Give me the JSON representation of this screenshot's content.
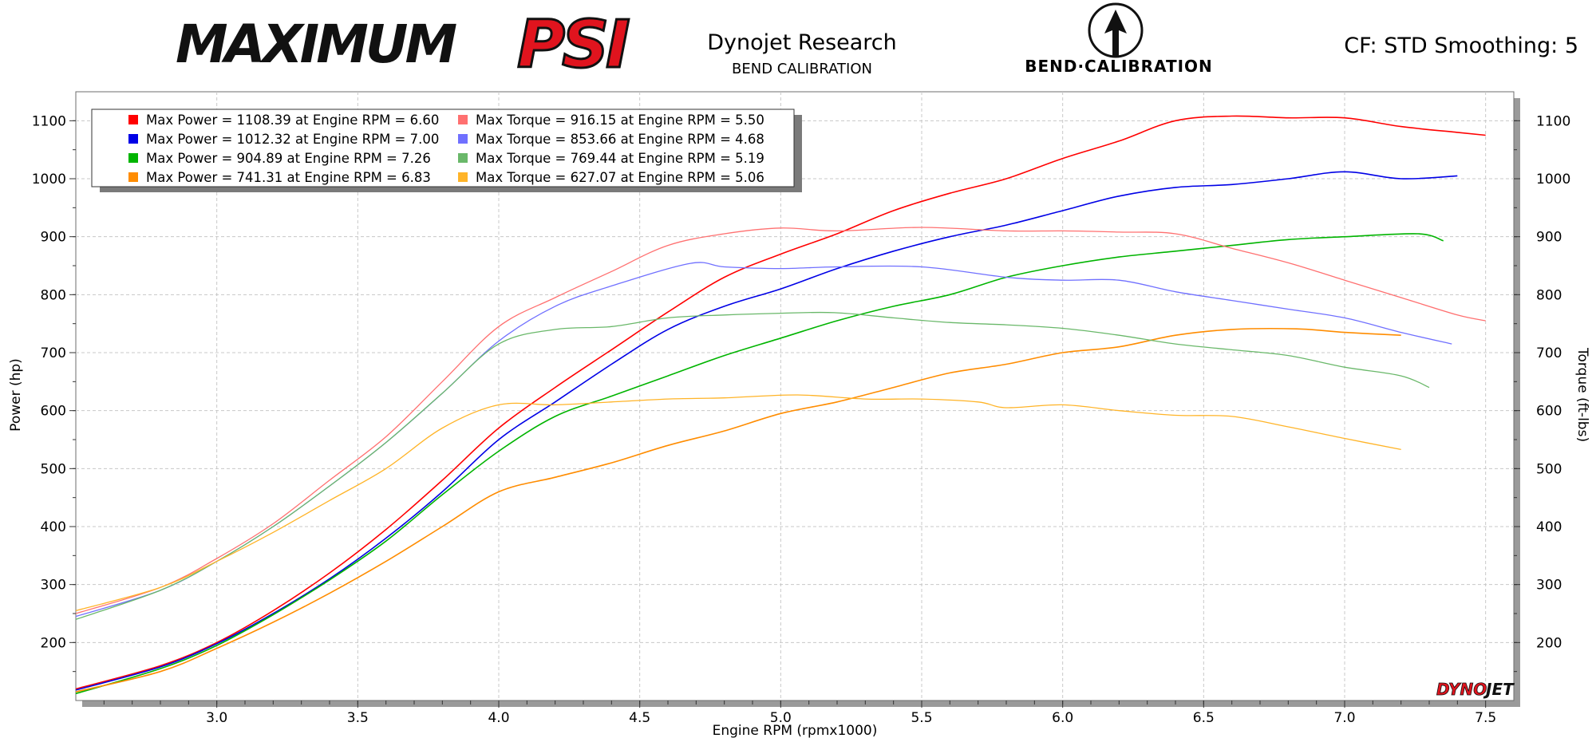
{
  "header": {
    "logo_left_part1": "MAXIMUM",
    "logo_left_part2": "PSI",
    "title": "Dynojet Research",
    "subtitle": "BEND CALIBRATION",
    "logo_right": "BEND·CALIBRATION",
    "settings": "CF: STD Smoothing: 5",
    "watermark_part1": "DYNO",
    "watermark_part2": "JET"
  },
  "colors": {
    "power": [
      "#ff0000",
      "#0000e6",
      "#00b400",
      "#ff8c00"
    ],
    "torque": [
      "#ff7070",
      "#7070ff",
      "#6ab86a",
      "#ffb428"
    ],
    "grid": "#c8c8c8"
  },
  "chart_data": {
    "type": "line",
    "xlabel": "Engine RPM (rpmx1000)",
    "ylabel_left": "Power (hp)",
    "ylabel_right": "Torque (ft-lbs)",
    "xlim": [
      2.5,
      7.6
    ],
    "ylim": [
      100,
      1150
    ],
    "x_ticks": [
      "3.0",
      "3.5",
      "4.0",
      "4.5",
      "5.0",
      "5.5",
      "6.0",
      "6.5",
      "7.0",
      "7.5"
    ],
    "y_ticks": [
      "200",
      "300",
      "400",
      "500",
      "600",
      "700",
      "800",
      "900",
      "1000",
      "1100"
    ],
    "grid": true,
    "legend_position": "top-left",
    "legend": [
      "Max Power = 1108.39 at Engine RPM = 6.60",
      "Max Power = 1012.32 at Engine RPM = 7.00",
      "Max Power = 904.89 at Engine RPM = 7.26",
      "Max Power = 741.31 at Engine RPM = 6.83",
      "Max Torque = 916.15 at Engine RPM = 5.50",
      "Max Torque = 853.66 at Engine RPM = 4.68",
      "Max Torque = 769.44 at Engine RPM = 5.19",
      "Max Torque = 627.07 at Engine RPM = 5.06"
    ],
    "series": [
      {
        "kind": "power",
        "points": [
          [
            2.5,
            120
          ],
          [
            2.8,
            160
          ],
          [
            3.0,
            200
          ],
          [
            3.2,
            255
          ],
          [
            3.4,
            320
          ],
          [
            3.6,
            395
          ],
          [
            3.8,
            480
          ],
          [
            4.0,
            570
          ],
          [
            4.2,
            640
          ],
          [
            4.4,
            705
          ],
          [
            4.6,
            770
          ],
          [
            4.8,
            830
          ],
          [
            5.0,
            870
          ],
          [
            5.2,
            905
          ],
          [
            5.4,
            945
          ],
          [
            5.6,
            975
          ],
          [
            5.8,
            1000
          ],
          [
            6.0,
            1035
          ],
          [
            6.2,
            1065
          ],
          [
            6.4,
            1100
          ],
          [
            6.6,
            1108
          ],
          [
            6.8,
            1105
          ],
          [
            7.0,
            1105
          ],
          [
            7.2,
            1090
          ],
          [
            7.4,
            1080
          ],
          [
            7.5,
            1075
          ]
        ]
      },
      {
        "kind": "power",
        "points": [
          [
            2.5,
            118
          ],
          [
            2.8,
            158
          ],
          [
            3.0,
            198
          ],
          [
            3.2,
            250
          ],
          [
            3.4,
            310
          ],
          [
            3.6,
            380
          ],
          [
            3.8,
            460
          ],
          [
            4.0,
            550
          ],
          [
            4.2,
            615
          ],
          [
            4.4,
            680
          ],
          [
            4.6,
            740
          ],
          [
            4.8,
            780
          ],
          [
            5.0,
            810
          ],
          [
            5.2,
            845
          ],
          [
            5.4,
            875
          ],
          [
            5.6,
            900
          ],
          [
            5.8,
            920
          ],
          [
            6.0,
            945
          ],
          [
            6.2,
            970
          ],
          [
            6.4,
            985
          ],
          [
            6.6,
            990
          ],
          [
            6.8,
            1000
          ],
          [
            7.0,
            1012
          ],
          [
            7.2,
            1000
          ],
          [
            7.4,
            1005
          ]
        ]
      },
      {
        "kind": "power",
        "points": [
          [
            2.5,
            112
          ],
          [
            2.8,
            155
          ],
          [
            3.0,
            195
          ],
          [
            3.2,
            248
          ],
          [
            3.4,
            308
          ],
          [
            3.6,
            375
          ],
          [
            3.8,
            455
          ],
          [
            4.0,
            530
          ],
          [
            4.2,
            590
          ],
          [
            4.4,
            625
          ],
          [
            4.6,
            660
          ],
          [
            4.8,
            695
          ],
          [
            5.0,
            725
          ],
          [
            5.2,
            755
          ],
          [
            5.4,
            780
          ],
          [
            5.6,
            800
          ],
          [
            5.8,
            830
          ],
          [
            6.0,
            850
          ],
          [
            6.2,
            865
          ],
          [
            6.4,
            875
          ],
          [
            6.6,
            885
          ],
          [
            6.8,
            895
          ],
          [
            7.0,
            900
          ],
          [
            7.26,
            905
          ],
          [
            7.35,
            893
          ]
        ]
      },
      {
        "kind": "power",
        "points": [
          [
            2.5,
            115
          ],
          [
            2.8,
            150
          ],
          [
            3.0,
            190
          ],
          [
            3.2,
            235
          ],
          [
            3.4,
            285
          ],
          [
            3.6,
            340
          ],
          [
            3.8,
            400
          ],
          [
            4.0,
            460
          ],
          [
            4.2,
            485
          ],
          [
            4.4,
            510
          ],
          [
            4.6,
            540
          ],
          [
            4.8,
            565
          ],
          [
            5.0,
            595
          ],
          [
            5.2,
            615
          ],
          [
            5.4,
            640
          ],
          [
            5.6,
            665
          ],
          [
            5.8,
            680
          ],
          [
            6.0,
            700
          ],
          [
            6.2,
            710
          ],
          [
            6.4,
            730
          ],
          [
            6.6,
            740
          ],
          [
            6.83,
            741
          ],
          [
            7.0,
            735
          ],
          [
            7.2,
            730
          ]
        ]
      },
      {
        "kind": "torque",
        "points": [
          [
            2.5,
            250
          ],
          [
            2.8,
            295
          ],
          [
            3.0,
            345
          ],
          [
            3.2,
            405
          ],
          [
            3.4,
            480
          ],
          [
            3.6,
            555
          ],
          [
            3.8,
            650
          ],
          [
            4.0,
            745
          ],
          [
            4.2,
            795
          ],
          [
            4.4,
            840
          ],
          [
            4.6,
            885
          ],
          [
            4.8,
            905
          ],
          [
            5.0,
            915
          ],
          [
            5.2,
            910
          ],
          [
            5.5,
            916
          ],
          [
            5.8,
            910
          ],
          [
            6.0,
            910
          ],
          [
            6.2,
            908
          ],
          [
            6.4,
            905
          ],
          [
            6.6,
            880
          ],
          [
            6.8,
            855
          ],
          [
            7.0,
            825
          ],
          [
            7.2,
            795
          ],
          [
            7.4,
            765
          ],
          [
            7.5,
            755
          ]
        ]
      },
      {
        "kind": "torque",
        "points": [
          [
            2.5,
            245
          ],
          [
            2.8,
            290
          ],
          [
            3.0,
            340
          ],
          [
            3.2,
            400
          ],
          [
            3.4,
            470
          ],
          [
            3.6,
            545
          ],
          [
            3.8,
            630
          ],
          [
            4.0,
            720
          ],
          [
            4.2,
            780
          ],
          [
            4.4,
            815
          ],
          [
            4.68,
            854
          ],
          [
            4.8,
            848
          ],
          [
            5.0,
            845
          ],
          [
            5.2,
            848
          ],
          [
            5.5,
            848
          ],
          [
            5.8,
            830
          ],
          [
            6.0,
            825
          ],
          [
            6.2,
            825
          ],
          [
            6.4,
            805
          ],
          [
            6.6,
            790
          ],
          [
            6.8,
            775
          ],
          [
            7.0,
            760
          ],
          [
            7.2,
            735
          ],
          [
            7.38,
            715
          ]
        ]
      },
      {
        "kind": "torque",
        "points": [
          [
            2.5,
            240
          ],
          [
            2.8,
            290
          ],
          [
            3.0,
            340
          ],
          [
            3.2,
            400
          ],
          [
            3.4,
            470
          ],
          [
            3.6,
            545
          ],
          [
            3.8,
            630
          ],
          [
            4.0,
            715
          ],
          [
            4.2,
            740
          ],
          [
            4.4,
            745
          ],
          [
            4.6,
            760
          ],
          [
            4.8,
            765
          ],
          [
            5.0,
            768
          ],
          [
            5.19,
            769
          ],
          [
            5.4,
            760
          ],
          [
            5.6,
            752
          ],
          [
            5.8,
            748
          ],
          [
            6.0,
            742
          ],
          [
            6.2,
            730
          ],
          [
            6.4,
            715
          ],
          [
            6.6,
            705
          ],
          [
            6.8,
            695
          ],
          [
            7.0,
            675
          ],
          [
            7.2,
            660
          ],
          [
            7.3,
            640
          ]
        ]
      },
      {
        "kind": "torque",
        "points": [
          [
            2.5,
            255
          ],
          [
            2.8,
            295
          ],
          [
            3.0,
            340
          ],
          [
            3.2,
            390
          ],
          [
            3.4,
            445
          ],
          [
            3.6,
            500
          ],
          [
            3.8,
            570
          ],
          [
            4.0,
            610
          ],
          [
            4.2,
            610
          ],
          [
            4.4,
            615
          ],
          [
            4.6,
            620
          ],
          [
            4.8,
            622
          ],
          [
            5.06,
            627
          ],
          [
            5.3,
            620
          ],
          [
            5.5,
            620
          ],
          [
            5.7,
            615
          ],
          [
            5.8,
            605
          ],
          [
            6.0,
            610
          ],
          [
            6.2,
            600
          ],
          [
            6.4,
            592
          ],
          [
            6.6,
            590
          ],
          [
            6.8,
            572
          ],
          [
            7.0,
            552
          ],
          [
            7.2,
            533
          ]
        ]
      }
    ]
  }
}
